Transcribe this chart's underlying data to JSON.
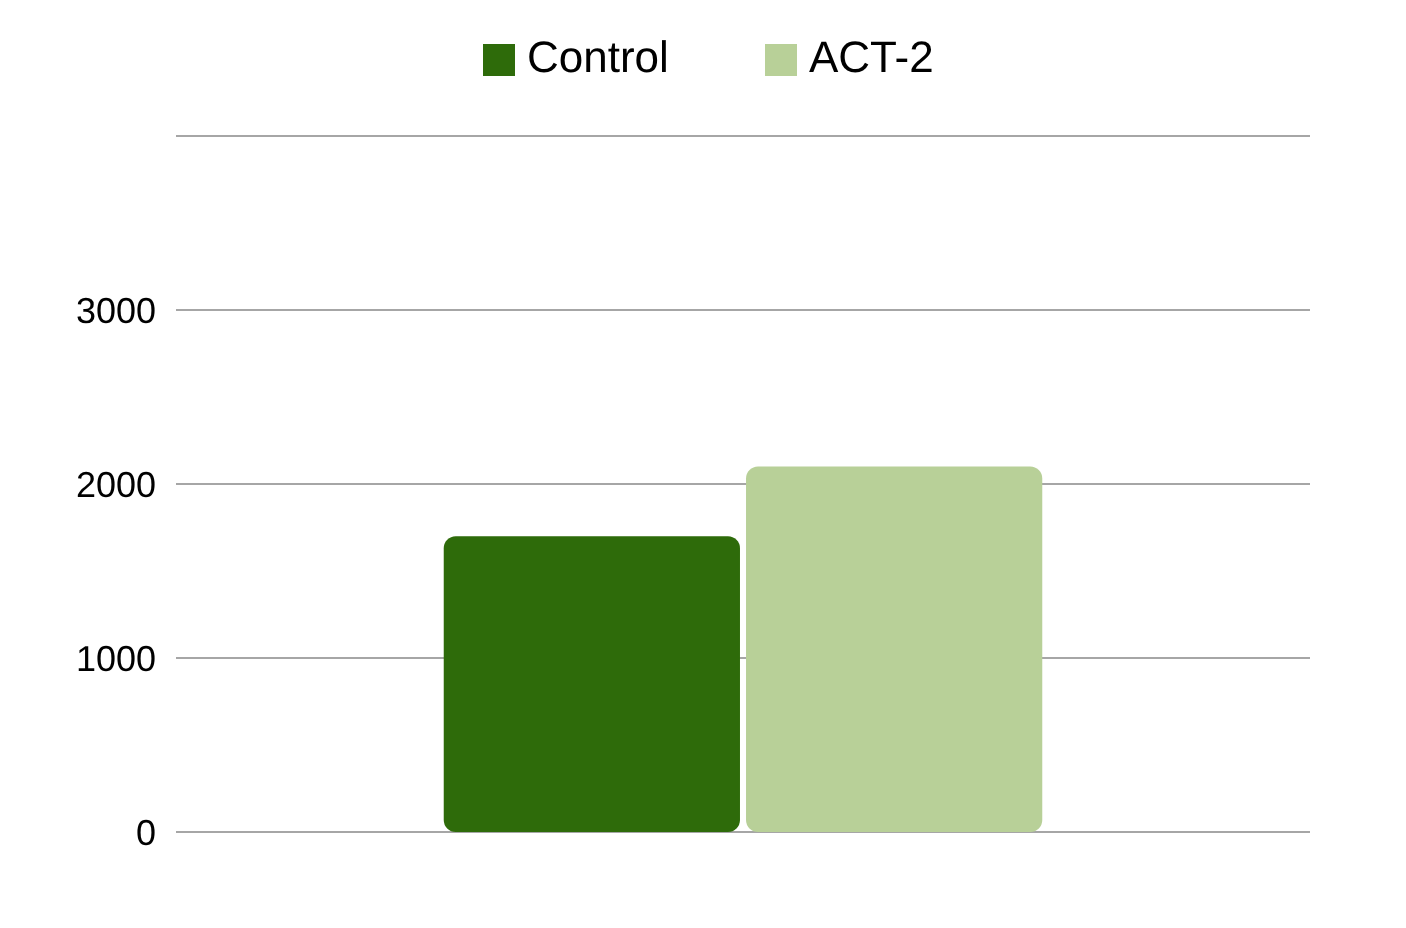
{
  "chart_data": {
    "type": "bar",
    "categories": [
      null
    ],
    "series": [
      {
        "name": "Control",
        "color": "#2e6b0a",
        "values": [
          1700
        ]
      },
      {
        "name": "ACT-2",
        "color": "#b8d098",
        "values": [
          2100
        ]
      }
    ],
    "ylim": [
      0,
      4000
    ],
    "yticks": [
      0,
      1000,
      2000,
      3000,
      {
        "value": 4000,
        "label": null
      }
    ],
    "grid": "y",
    "legend": "top"
  }
}
